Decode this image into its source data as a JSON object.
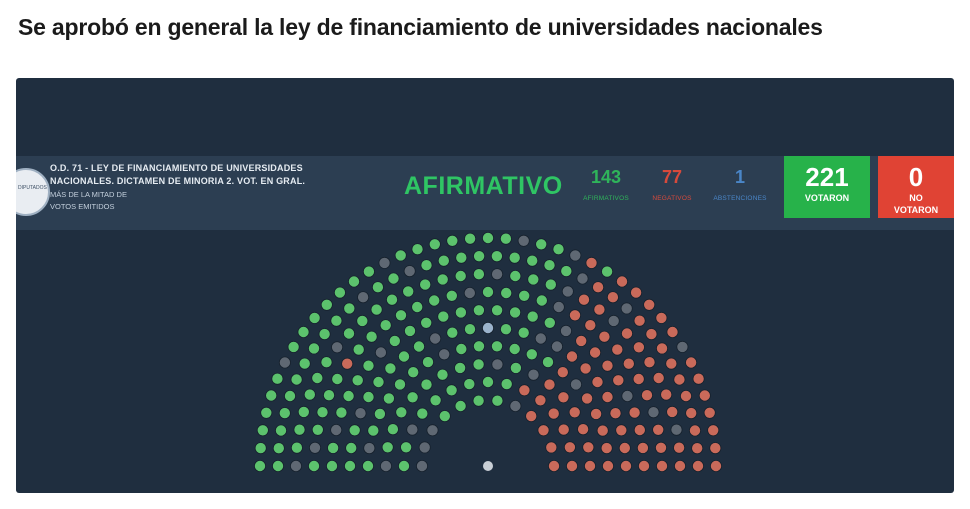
{
  "headline": "Se aprobó en general la ley de financiamiento de universidades nacionales",
  "board": {
    "logo_text": "DIPUTADOS",
    "title_line1": "O.D. 71 - LEY DE FINANCIAMIENTO DE UNIVERSIDADES",
    "title_line2": "NACIONALES. DICTAMEN DE MINORIA 2. VOT. EN GRAL.",
    "subtitle_line1": "MÁS DE LA MITAD DE",
    "subtitle_line2": "VOTOS EMITIDOS",
    "result": "AFIRMATIVO",
    "afirmativos": {
      "value": "143",
      "label": "AFIRMATIVOS"
    },
    "negativos": {
      "value": "77",
      "label": "NEGATIVOS"
    },
    "abstenciones": {
      "value": "1",
      "label": "ABSTENCIONES"
    },
    "votaron": {
      "value": "221",
      "label": "VOTARON"
    },
    "no_votaron": {
      "value": "0",
      "label_line1": "NO",
      "label_line2": "VOTARON"
    }
  },
  "hemicycle": {
    "colors": {
      "afirmativo": "#5cc26d",
      "negativo": "#c96a5a",
      "abstencion": "#9bb3cc",
      "ausente": "#5f6873",
      "presidente": "#c9cfd6"
    }
  }
}
